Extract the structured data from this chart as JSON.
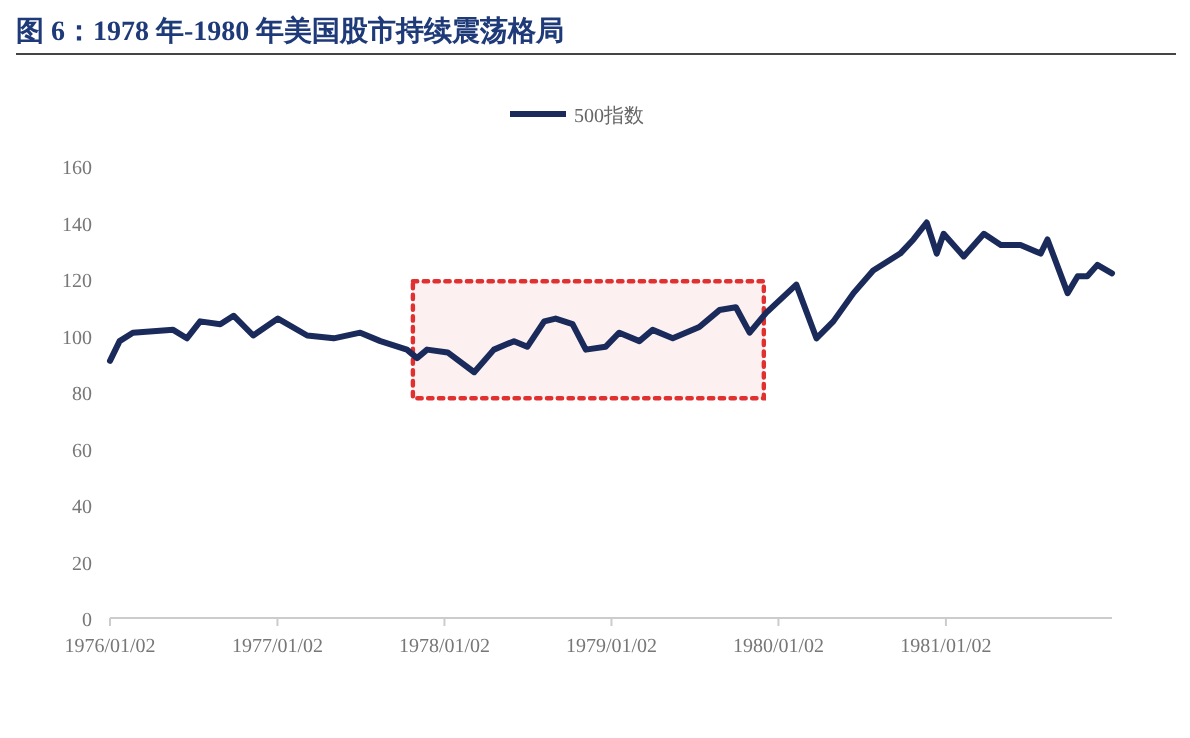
{
  "chart_data": {
    "type": "line",
    "title": "图 6：1978 年-1980 年美国股市持续震荡格局",
    "x": [
      "1976-01-02",
      "1976-01-23",
      "1976-02-21",
      "1976-05-19",
      "1976-06-18",
      "1976-07-17",
      "1976-08-30",
      "1976-09-28",
      "1976-11-10",
      "1977-01-03",
      "1977-03-08",
      "1977-05-05",
      "1977-07-02",
      "1977-08-15",
      "1977-10-12",
      "1977-11-03",
      "1977-11-25",
      "1978-01-09",
      "1978-03-08",
      "1978-04-20",
      "1978-06-03",
      "1978-07-02",
      "1978-08-08",
      "1978-09-02",
      "1978-10-09",
      "1978-11-07",
      "1978-12-20",
      "1979-01-19",
      "1979-03-04",
      "1979-04-02",
      "1979-05-16",
      "1979-07-13",
      "1979-08-26",
      "1979-10-01",
      "1979-10-31",
      "1979-12-06",
      "1980-02-10",
      "1980-03-25",
      "1980-05-01",
      "1980-06-14",
      "1980-07-27",
      "1980-09-24",
      "1980-10-23",
      "1980-11-21",
      "1980-12-13",
      "1980-12-28",
      "1981-02-10",
      "1981-03-26",
      "1981-05-02",
      "1981-06-14",
      "1981-07-28",
      "1981-08-12",
      "1981-09-25",
      "1981-10-17",
      "1981-11-07",
      "1981-11-29",
      "1981-12-31"
    ],
    "series": [
      {
        "name": "500指数",
        "color": "#1a2a5a",
        "values": [
          91,
          98,
          101,
          102,
          99,
          105,
          104,
          107,
          100,
          106,
          100,
          99,
          101,
          98,
          95,
          92,
          95,
          94,
          87,
          95,
          98,
          96,
          105,
          106,
          104,
          95,
          96,
          101,
          98,
          102,
          99,
          103,
          109,
          110,
          101,
          108,
          118,
          99,
          105,
          115,
          123,
          129,
          134,
          140,
          129,
          136,
          128,
          136,
          132,
          132,
          129,
          134,
          115,
          121,
          121,
          125,
          122
        ]
      }
    ],
    "xlim": [
      "1976-01-02",
      "1981-12-31"
    ],
    "xticks": [
      {
        "value": "1976-01-02",
        "label": "1976/01/02"
      },
      {
        "value": "1977-01-02",
        "label": "1977/01/02"
      },
      {
        "value": "1978-01-02",
        "label": "1978/01/02"
      },
      {
        "value": "1979-01-02",
        "label": "1979/01/02"
      },
      {
        "value": "1980-01-02",
        "label": "1980/01/02"
      },
      {
        "value": "1981-01-02",
        "label": "1981/01/02"
      }
    ],
    "ylim": [
      0,
      160
    ],
    "yticks": [
      0,
      20,
      40,
      60,
      80,
      100,
      120,
      140,
      160
    ],
    "bands": [
      {
        "axis": "x",
        "from": "1977-10-25",
        "to": "1979-12-01",
        "color": "#e03030"
      }
    ],
    "legend": "top",
    "grid": false,
    "marker": "none",
    "line_style": "solid"
  }
}
